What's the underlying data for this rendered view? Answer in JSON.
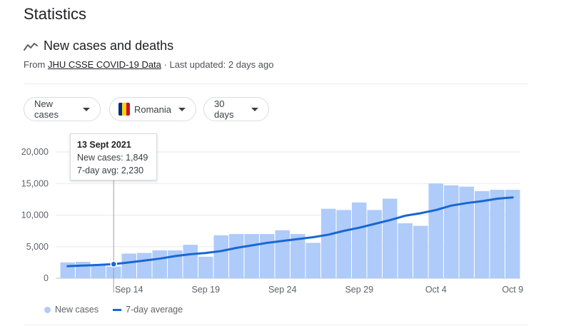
{
  "page_title": "Statistics",
  "section": {
    "title": "New cases and deaths",
    "icon": "trending-line-icon",
    "source_prefix": "From",
    "source_link": "JHU CSSE COVID-19 Data",
    "updated": "· Last updated: 2 days ago"
  },
  "filters": {
    "metric": "New cases",
    "country": "Romania",
    "country_flag_colors": [
      "#002B7F",
      "#FCD116",
      "#CE1126"
    ],
    "range": "30 days"
  },
  "tooltip": {
    "date": "13 Sept 2021",
    "new_cases": "New cases: 1,849",
    "avg": "7-day avg: 2,230"
  },
  "legend": {
    "bars": "New cases",
    "line": "7-day average"
  },
  "colors": {
    "bar": "#aecbfa",
    "line": "#1967d2",
    "grid": "#e8eaed",
    "axis_text": "#5f6368"
  },
  "chart_data": {
    "type": "bar",
    "title": "",
    "xlabel": "",
    "ylabel": "",
    "ylim": [
      0,
      20000
    ],
    "y_ticks": [
      0,
      5000,
      10000,
      15000,
      20000
    ],
    "y_tick_labels": [
      "0",
      "5,000",
      "10,000",
      "15,000",
      "20,000"
    ],
    "x_tick_labels": [
      "Sep 14",
      "Sep 19",
      "Sep 24",
      "Sep 29",
      "Oct 4",
      "Oct 9"
    ],
    "x_tick_indices": [
      4,
      9,
      14,
      19,
      24,
      29
    ],
    "categories": [
      "Sep 10",
      "Sep 11",
      "Sep 12",
      "Sep 13",
      "Sep 14",
      "Sep 15",
      "Sep 16",
      "Sep 17",
      "Sep 18",
      "Sep 19",
      "Sep 20",
      "Sep 21",
      "Sep 22",
      "Sep 23",
      "Sep 24",
      "Sep 25",
      "Sep 26",
      "Sep 27",
      "Sep 28",
      "Sep 29",
      "Sep 30",
      "Oct 1",
      "Oct 2",
      "Oct 3",
      "Oct 4",
      "Oct 5",
      "Oct 6",
      "Oct 7",
      "Oct 8",
      "Oct 9"
    ],
    "series": [
      {
        "name": "New cases",
        "values": [
          2500,
          2600,
          2100,
          1849,
          3900,
          4000,
          4400,
          4400,
          5300,
          3400,
          6800,
          7000,
          7000,
          7000,
          7600,
          7000,
          5600,
          11000,
          10800,
          12000,
          10800,
          12600,
          8700,
          8300,
          15000,
          14700,
          14500,
          13800,
          14000,
          14000
        ]
      },
      {
        "name": "7-day average",
        "values": [
          1900,
          2000,
          2100,
          2230,
          2500,
          2800,
          3100,
          3500,
          3800,
          4000,
          4300,
          4800,
          5200,
          5600,
          5900,
          6200,
          6500,
          6900,
          7500,
          8000,
          8600,
          9200,
          9900,
          10300,
          10800,
          11500,
          11900,
          12200,
          12600,
          12800
        ]
      }
    ],
    "highlight_index": 3,
    "grid": true,
    "legend_position": "bottom-left"
  }
}
